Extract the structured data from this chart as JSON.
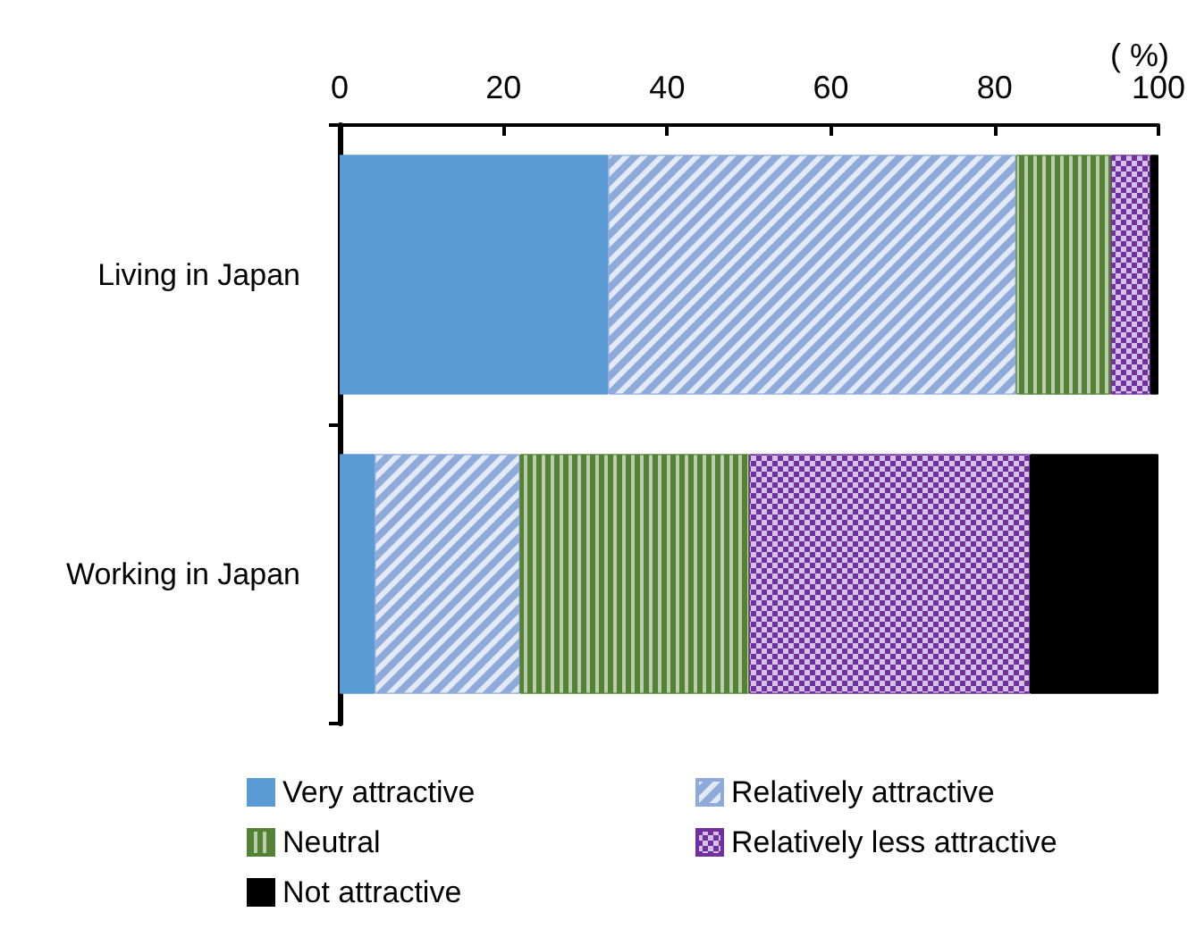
{
  "chart_data": {
    "type": "bar",
    "orientation": "horizontal",
    "stacked": true,
    "xlabel": "( %)",
    "categories": [
      "Living in Japan",
      "Working in Japan"
    ],
    "series": [
      {
        "name": "Very attractive",
        "color": "#5b9bd5",
        "values": [
          32.8,
          4.3
        ]
      },
      {
        "name": "Relatively attractive",
        "color": "#8eaadb",
        "values": [
          49.8,
          17.7
        ]
      },
      {
        "name": "Neutral",
        "color": "#548235",
        "values": [
          11.6,
          28.0
        ]
      },
      {
        "name": "Relatively less attractive",
        "color": "#7030a0",
        "values": [
          4.8,
          34.3
        ]
      },
      {
        "name": "Not attractive",
        "color": "#000000",
        "values": [
          1.0,
          15.7
        ]
      }
    ],
    "xlim": [
      0,
      100
    ],
    "xticks": [
      0,
      20,
      40,
      60,
      80,
      100
    ],
    "grid": false,
    "legend": "bottom"
  }
}
